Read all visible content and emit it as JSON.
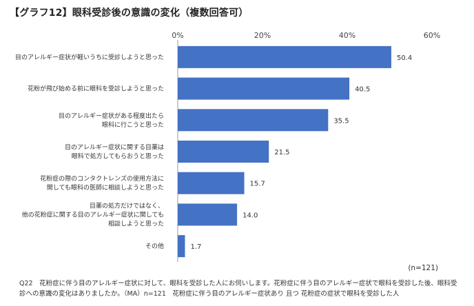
{
  "title": "【グラフ12】眼科受診後の意識の変化（複数回答可）",
  "sample_note": "(n=121)",
  "footnote": "Q22　花粉症に伴う目のアレルギー症状に対して、眼科を受診した人にお伺いします。花粉症に伴う目のアレルギー症状で眼科を受診した後、眼科受診への意識の変化はありましたか。（MA）n=121　花粉症に伴う目のアレルギー症状あり 且つ 花粉症の症状で眼科を受診した人",
  "colors": {
    "bar": "#4472C4",
    "axis": "#999999"
  },
  "chart_data": {
    "type": "bar",
    "orientation": "horizontal",
    "xlim": [
      0,
      60
    ],
    "x_ticks": [
      0,
      20,
      40,
      60
    ],
    "x_tick_labels": [
      "0%",
      "20%",
      "40%",
      "60%"
    ],
    "categories": [
      [
        "目のアレルギー症状が軽いうちに受診しようと思った"
      ],
      [
        "花粉が飛び始める前に眼科を受診しようと思った"
      ],
      [
        "目のアレルギー症状がある程度出たら",
        "眼科に行こうと思った"
      ],
      [
        "目のアレルギー症状に関する目薬は",
        "眼科で処方してもらおうと思った"
      ],
      [
        "花粉症の際のコンタクトレンズの使用方法に",
        "関しても眼科の医師に相談しようと思った"
      ],
      [
        "目薬の処方だけではなく、",
        "他の花粉症に関する目のアレルギー症状に関しても",
        "相談しようと思った"
      ],
      [
        "その他"
      ]
    ],
    "values": [
      50.4,
      40.5,
      35.5,
      21.5,
      15.7,
      14.0,
      1.7
    ],
    "value_labels": [
      "50.4",
      "40.5",
      "35.5",
      "21.5",
      "15.7",
      "14.0",
      "1.7"
    ]
  }
}
